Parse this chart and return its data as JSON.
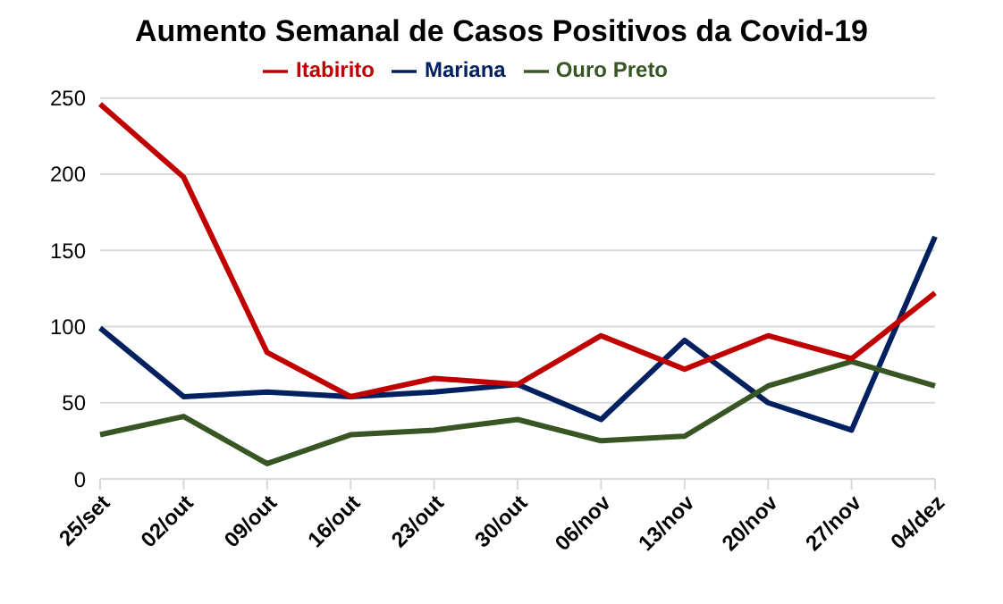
{
  "chart_data": {
    "type": "line",
    "title": "Aumento Semanal de Casos Positivos da Covid-19",
    "categories": [
      "25/set",
      "02/out",
      "09/out",
      "16/out",
      "23/out",
      "30/out",
      "06/nov",
      "13/nov",
      "20/nov",
      "27/nov",
      "04/dez"
    ],
    "series": [
      {
        "name": "Mariana",
        "color": "#002060",
        "values": [
          99,
          54,
          57,
          54,
          57,
          62,
          39,
          91,
          50,
          32,
          159
        ]
      },
      {
        "name": "Ouro Preto",
        "color": "#375623",
        "values": [
          29,
          41,
          10,
          29,
          32,
          39,
          25,
          28,
          61,
          77,
          61
        ]
      },
      {
        "name": "Itabirito",
        "color": "#c00000",
        "values": [
          246,
          198,
          83,
          54,
          66,
          62,
          94,
          72,
          94,
          79,
          122
        ]
      }
    ],
    "ylim": [
      0,
      250
    ],
    "yticks": [
      0,
      50,
      100,
      150,
      200,
      250
    ],
    "grid": "y",
    "legend": "top",
    "marker": "none",
    "line_style": "solid"
  }
}
